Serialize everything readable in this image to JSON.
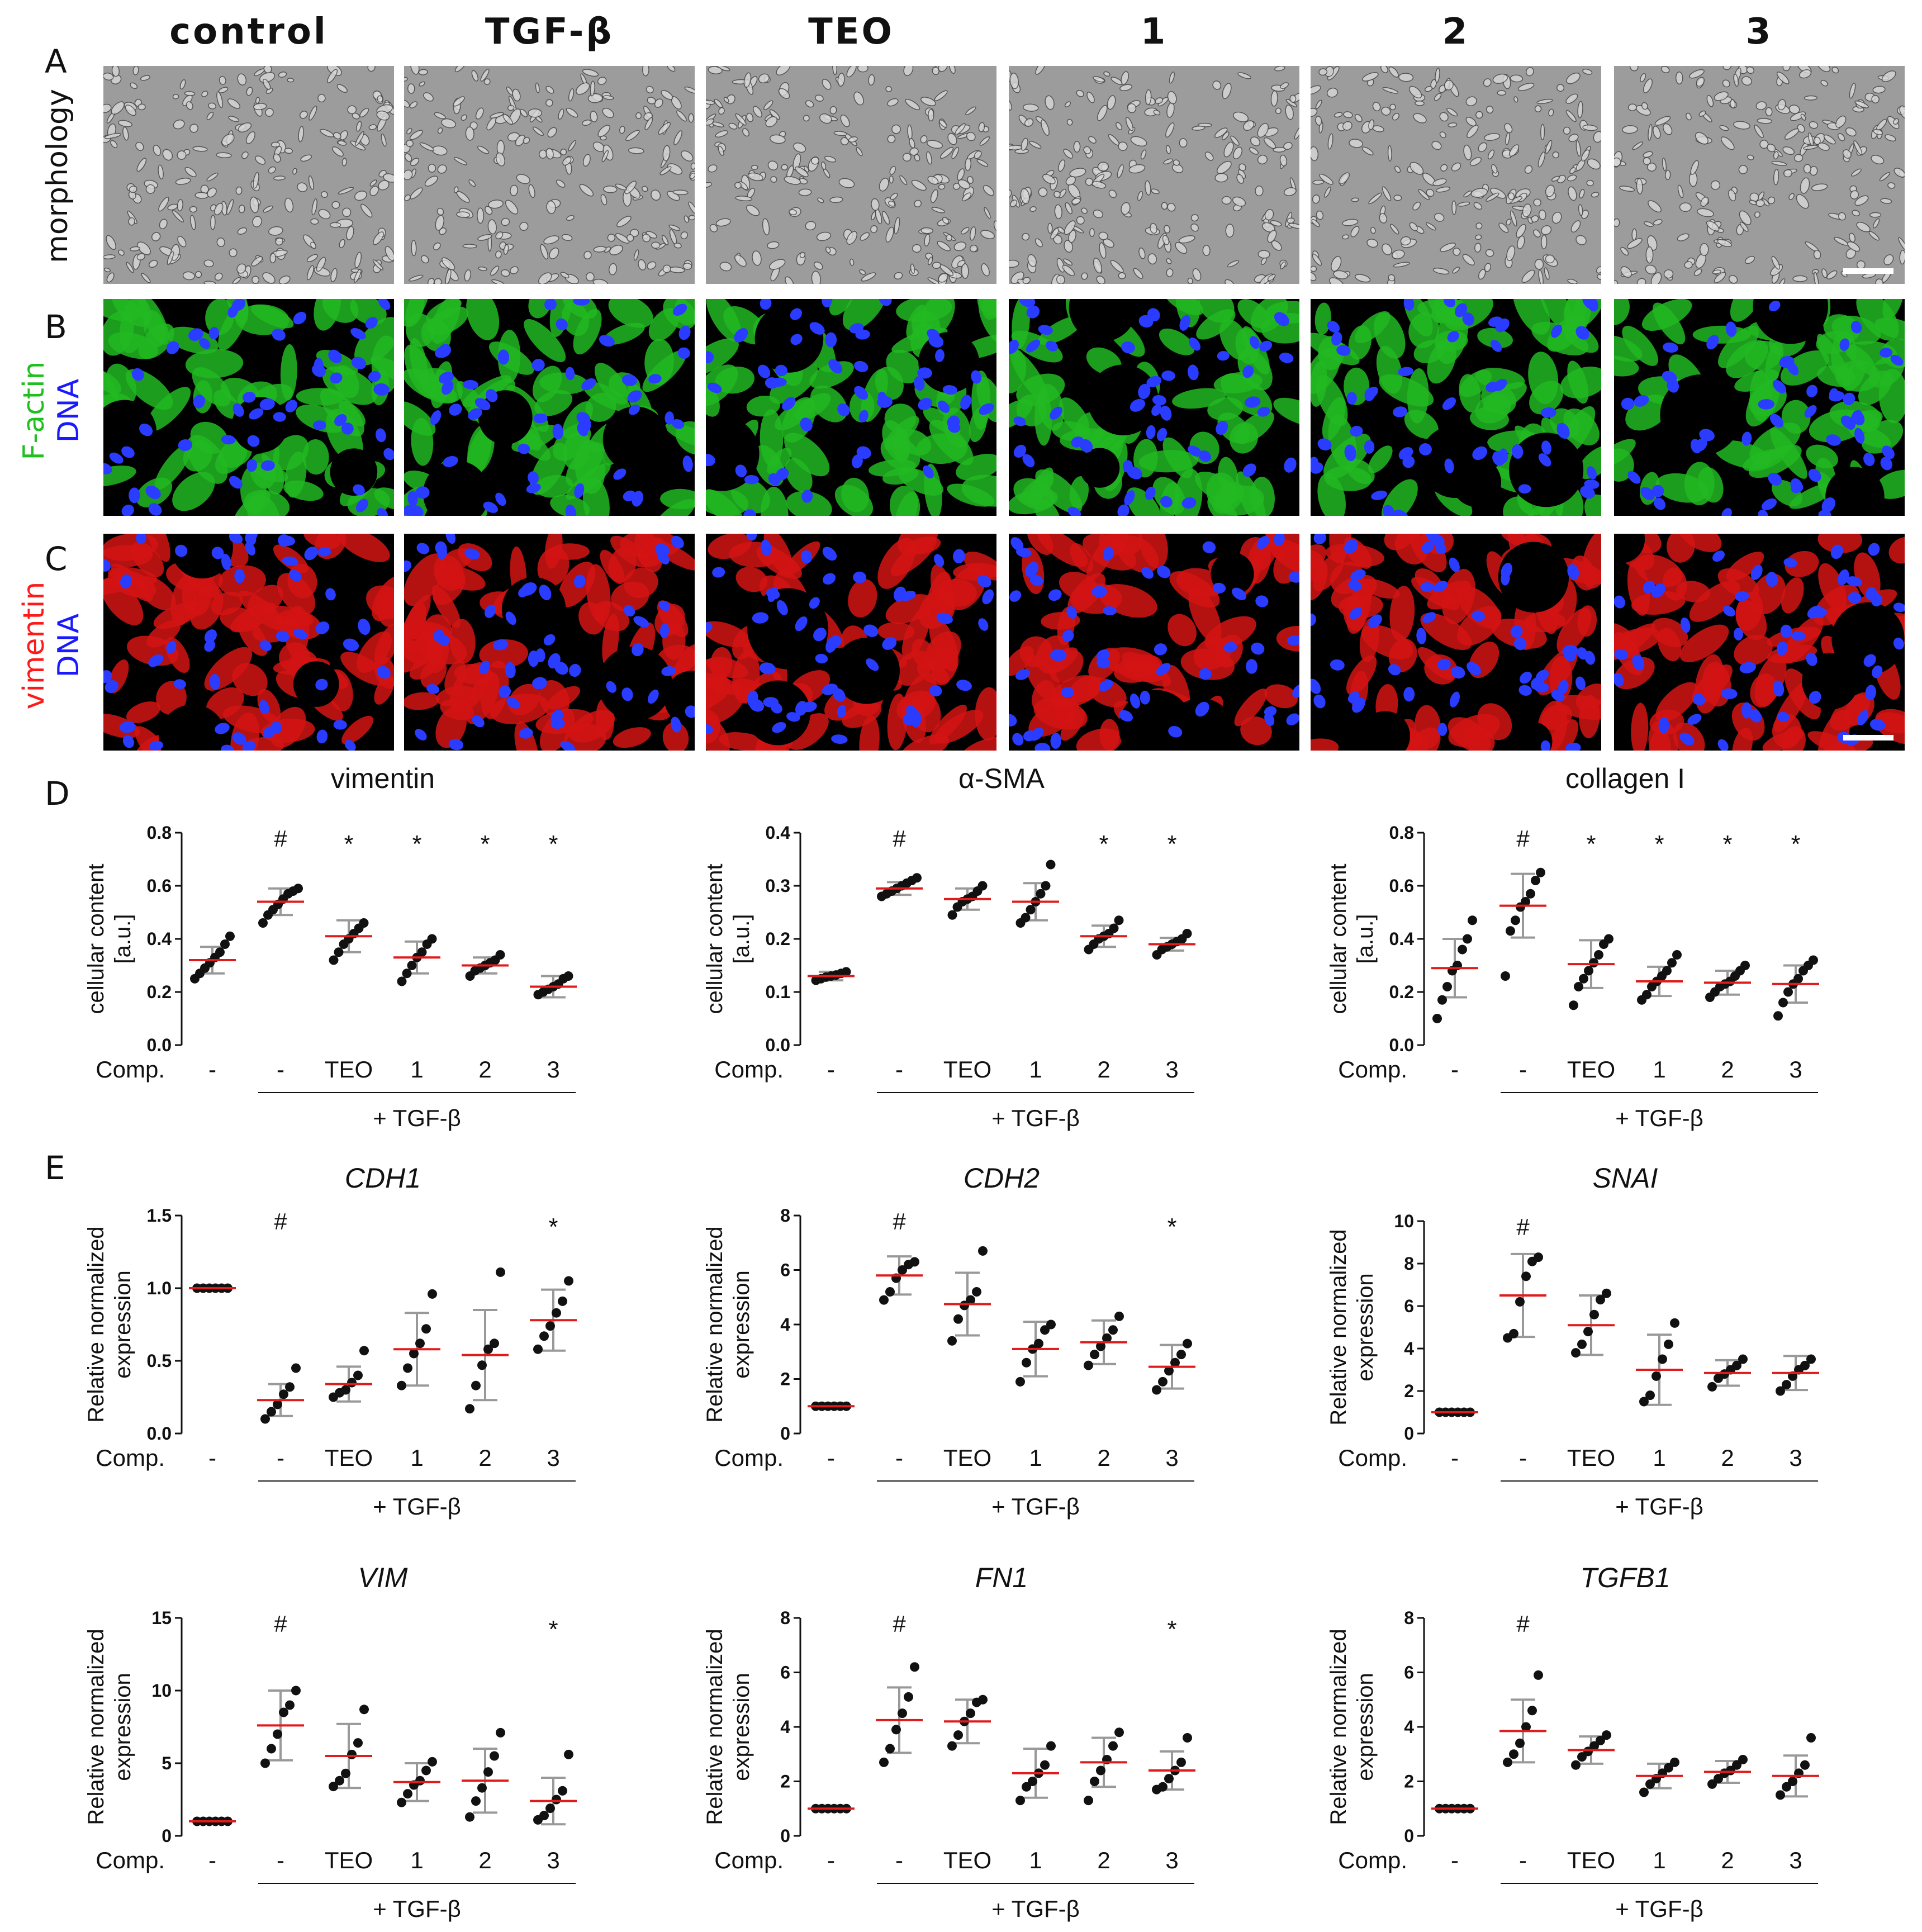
{
  "columns": [
    "control",
    "TGF-β",
    "TEO",
    "1",
    "2",
    "3"
  ],
  "panels": {
    "A": {
      "letter": "A",
      "row_label": "morphology"
    },
    "B": {
      "letter": "B",
      "row_label": [
        {
          "text": "F-actin",
          "color": "#1fbf1f"
        },
        {
          "text": "DNA",
          "color": "#1a1aff"
        }
      ]
    },
    "C": {
      "letter": "C",
      "row_label": [
        {
          "text": "vimentin",
          "color": "#ff1a1a"
        },
        {
          "text": "DNA",
          "color": "#1a1aff"
        }
      ]
    },
    "D": {
      "letter": "D"
    },
    "E": {
      "letter": "E"
    }
  },
  "image_styles": {
    "A": {
      "bg": "#9c9c9c",
      "cell": "#d8d8d8",
      "stroke": "#444444"
    },
    "B": {
      "bg": "#000000",
      "cell": "#22b822",
      "nucleus": "#2a3cff"
    },
    "C": {
      "bg": "#000000",
      "cell": "#d41414",
      "nucleus": "#2a3cff"
    }
  },
  "x_axis_common": {
    "comp_label": "Comp.",
    "categories": [
      "-",
      "-",
      "TEO",
      "1",
      "2",
      "3"
    ],
    "group_label": "+ TGF-β"
  },
  "chart_data": [
    {
      "id": "D-vimentin",
      "type": "scatter",
      "title": "vimentin",
      "title_italic": false,
      "ylabel": [
        "cellular content",
        "[a.u.]"
      ],
      "ylim": [
        0,
        0.8
      ],
      "yticks": [
        "0.0",
        "0.2",
        "0.4",
        "0.6",
        "0.8"
      ],
      "markers": [
        "",
        "#",
        "*",
        "*",
        "*",
        "*"
      ],
      "mean": [
        0.32,
        0.54,
        0.41,
        0.33,
        0.3,
        0.22
      ],
      "sd": [
        0.05,
        0.05,
        0.06,
        0.06,
        0.03,
        0.04
      ],
      "points": [
        [
          0.25,
          0.27,
          0.29,
          0.31,
          0.33,
          0.35,
          0.38,
          0.41
        ],
        [
          0.46,
          0.49,
          0.51,
          0.53,
          0.55,
          0.57,
          0.58,
          0.59
        ],
        [
          0.32,
          0.35,
          0.38,
          0.4,
          0.42,
          0.44,
          0.46
        ],
        [
          0.24,
          0.27,
          0.3,
          0.33,
          0.35,
          0.38,
          0.4
        ],
        [
          0.26,
          0.28,
          0.29,
          0.3,
          0.31,
          0.32,
          0.34
        ],
        [
          0.19,
          0.2,
          0.21,
          0.22,
          0.23,
          0.25,
          0.26
        ]
      ]
    },
    {
      "id": "D-aSMA",
      "type": "scatter",
      "title": "α-SMA",
      "title_italic": false,
      "ylabel": [
        "cellular content",
        "[a.u.]"
      ],
      "ylim": [
        0,
        0.4
      ],
      "yticks": [
        "0.0",
        "0.1",
        "0.2",
        "0.3",
        "0.4"
      ],
      "markers": [
        "",
        "#",
        "",
        "",
        "*",
        "*"
      ],
      "mean": [
        0.13,
        0.295,
        0.275,
        0.27,
        0.205,
        0.19
      ],
      "sd": [
        0.008,
        0.012,
        0.02,
        0.035,
        0.02,
        0.012
      ],
      "points": [
        [
          0.122,
          0.125,
          0.128,
          0.13,
          0.132,
          0.135,
          0.138
        ],
        [
          0.28,
          0.285,
          0.29,
          0.295,
          0.3,
          0.305,
          0.31,
          0.315
        ],
        [
          0.245,
          0.26,
          0.27,
          0.275,
          0.28,
          0.29,
          0.3
        ],
        [
          0.23,
          0.24,
          0.255,
          0.27,
          0.285,
          0.3,
          0.34
        ],
        [
          0.18,
          0.19,
          0.2,
          0.205,
          0.21,
          0.22,
          0.235
        ],
        [
          0.17,
          0.18,
          0.185,
          0.19,
          0.195,
          0.2,
          0.21
        ]
      ]
    },
    {
      "id": "D-collagenI",
      "type": "scatter",
      "title": "collagen I",
      "title_italic": false,
      "ylabel": [
        "cellular content",
        "[a.u.]"
      ],
      "ylim": [
        0,
        0.8
      ],
      "yticks": [
        "0.0",
        "0.2",
        "0.4",
        "0.6",
        "0.8"
      ],
      "markers": [
        "",
        "#",
        "*",
        "*",
        "*",
        "*"
      ],
      "mean": [
        0.29,
        0.525,
        0.305,
        0.24,
        0.235,
        0.23
      ],
      "sd": [
        0.11,
        0.12,
        0.09,
        0.055,
        0.045,
        0.07
      ],
      "points": [
        [
          0.1,
          0.17,
          0.22,
          0.28,
          0.3,
          0.36,
          0.4,
          0.47
        ],
        [
          0.26,
          0.43,
          0.47,
          0.52,
          0.54,
          0.57,
          0.62,
          0.65
        ],
        [
          0.15,
          0.22,
          0.25,
          0.28,
          0.31,
          0.34,
          0.38,
          0.4
        ],
        [
          0.17,
          0.19,
          0.22,
          0.24,
          0.26,
          0.28,
          0.31,
          0.34
        ],
        [
          0.18,
          0.2,
          0.22,
          0.23,
          0.24,
          0.26,
          0.28,
          0.3
        ],
        [
          0.11,
          0.16,
          0.2,
          0.23,
          0.25,
          0.28,
          0.3,
          0.32
        ]
      ]
    },
    {
      "id": "E-CDH1",
      "type": "scatter",
      "title": "CDH1",
      "title_italic": true,
      "ylabel": [
        "Relative normalized",
        "expression"
      ],
      "ylim": [
        0,
        1.5
      ],
      "yticks": [
        "0.0",
        "0.5",
        "1.0",
        "1.5"
      ],
      "markers": [
        "",
        "#",
        "",
        "",
        "",
        "*"
      ],
      "mean": [
        1.0,
        0.23,
        0.34,
        0.58,
        0.54,
        0.78
      ],
      "sd": [
        0.0,
        0.11,
        0.12,
        0.25,
        0.31,
        0.21
      ],
      "points": [
        [
          1.0,
          1.0,
          1.0,
          1.0,
          1.0,
          1.0
        ],
        [
          0.1,
          0.15,
          0.2,
          0.27,
          0.32,
          0.45
        ],
        [
          0.25,
          0.28,
          0.3,
          0.35,
          0.4,
          0.57
        ],
        [
          0.33,
          0.45,
          0.55,
          0.62,
          0.72,
          0.96
        ],
        [
          0.17,
          0.33,
          0.47,
          0.58,
          0.62,
          1.11
        ],
        [
          0.58,
          0.67,
          0.74,
          0.83,
          0.91,
          1.05
        ]
      ]
    },
    {
      "id": "E-CDH2",
      "type": "scatter",
      "title": "CDH2",
      "title_italic": true,
      "ylabel": [
        "Relative normalized",
        "expression"
      ],
      "ylim": [
        0,
        8
      ],
      "yticks": [
        "0",
        "2",
        "4",
        "6",
        "8"
      ],
      "markers": [
        "",
        "#",
        "",
        "",
        "",
        "*"
      ],
      "mean": [
        1.0,
        5.8,
        4.75,
        3.1,
        3.35,
        2.45
      ],
      "sd": [
        0.0,
        0.7,
        1.15,
        1.0,
        0.8,
        0.8
      ],
      "points": [
        [
          1.0,
          1.0,
          1.0,
          1.0,
          1.0,
          1.0
        ],
        [
          4.9,
          5.2,
          5.7,
          6.0,
          6.2,
          6.3
        ],
        [
          3.4,
          4.2,
          4.7,
          4.9,
          5.2,
          6.7
        ],
        [
          1.9,
          2.6,
          3.1,
          3.3,
          3.8,
          4.0
        ],
        [
          2.5,
          2.9,
          3.2,
          3.5,
          3.8,
          4.3
        ],
        [
          1.6,
          1.9,
          2.3,
          2.6,
          2.9,
          3.3
        ]
      ]
    },
    {
      "id": "E-SNAI",
      "type": "scatter",
      "title": "SNAI",
      "title_italic": true,
      "ylabel": [
        "Relative normalized",
        "expression"
      ],
      "ylim": [
        0,
        10
      ],
      "yticks": [
        "0",
        "2",
        "4",
        "6",
        "8",
        "10"
      ],
      "markers": [
        "",
        "#",
        "",
        "",
        "",
        ""
      ],
      "mean": [
        1.0,
        6.5,
        5.1,
        3.0,
        2.85,
        2.85
      ],
      "sd": [
        0.0,
        1.95,
        1.4,
        1.65,
        0.6,
        0.8
      ],
      "points": [
        [
          1.0,
          1.0,
          1.0,
          1.0,
          1.0,
          1.0
        ],
        [
          4.5,
          4.7,
          6.2,
          7.4,
          8.1,
          8.3
        ],
        [
          3.8,
          4.2,
          4.8,
          5.6,
          6.3,
          6.6
        ],
        [
          1.5,
          1.8,
          2.7,
          3.5,
          4.2,
          5.2
        ],
        [
          2.2,
          2.6,
          2.8,
          3.0,
          3.2,
          3.5
        ],
        [
          2.0,
          2.3,
          2.7,
          3.0,
          3.2,
          3.5
        ]
      ]
    },
    {
      "id": "E-VIM",
      "type": "scatter",
      "title": "VIM",
      "title_italic": true,
      "ylabel": [
        "Relative normalized",
        "expression"
      ],
      "ylim": [
        0,
        15
      ],
      "yticks": [
        "0",
        "5",
        "10",
        "15"
      ],
      "markers": [
        "",
        "#",
        "",
        "",
        "",
        "*"
      ],
      "mean": [
        1.0,
        7.6,
        5.5,
        3.7,
        3.8,
        2.4
      ],
      "sd": [
        0.0,
        2.4,
        2.2,
        1.3,
        2.2,
        1.6
      ],
      "points": [
        [
          1.0,
          1.0,
          1.0,
          1.0,
          1.0,
          1.0
        ],
        [
          5.0,
          6.0,
          7.0,
          8.5,
          9.0,
          10.0
        ],
        [
          3.4,
          3.8,
          4.3,
          5.6,
          6.4,
          8.7
        ],
        [
          2.3,
          2.9,
          3.5,
          3.8,
          4.5,
          5.1
        ],
        [
          1.3,
          2.4,
          3.3,
          4.4,
          5.5,
          7.1
        ],
        [
          1.1,
          1.4,
          1.9,
          2.5,
          3.1,
          5.6
        ]
      ]
    },
    {
      "id": "E-FN1",
      "type": "scatter",
      "title": "FN1",
      "title_italic": true,
      "ylabel": [
        "Relative normalized",
        "expression"
      ],
      "ylim": [
        0,
        8
      ],
      "yticks": [
        "0",
        "2",
        "4",
        "6",
        "8"
      ],
      "markers": [
        "",
        "#",
        "",
        "",
        "",
        "*"
      ],
      "mean": [
        1.0,
        4.25,
        4.2,
        2.3,
        2.7,
        2.4
      ],
      "sd": [
        0.0,
        1.2,
        0.8,
        0.9,
        0.9,
        0.7
      ],
      "points": [
        [
          1.0,
          1.0,
          1.0,
          1.0,
          1.0,
          1.0
        ],
        [
          2.7,
          3.2,
          3.9,
          4.5,
          5.1,
          6.2
        ],
        [
          3.3,
          3.7,
          4.2,
          4.5,
          4.9,
          5.0
        ],
        [
          1.3,
          1.8,
          2.0,
          2.3,
          2.6,
          3.3
        ],
        [
          1.3,
          2.0,
          2.4,
          2.8,
          3.3,
          3.8
        ],
        [
          1.7,
          1.8,
          2.1,
          2.4,
          2.7,
          3.6
        ]
      ]
    },
    {
      "id": "E-TGFB1",
      "type": "scatter",
      "title": "TGFB1",
      "title_italic": true,
      "ylabel": [
        "Relative normalized",
        "expression"
      ],
      "ylim": [
        0,
        8
      ],
      "yticks": [
        "0",
        "2",
        "4",
        "6",
        "8"
      ],
      "markers": [
        "",
        "#",
        "",
        "",
        "",
        ""
      ],
      "mean": [
        1.0,
        3.85,
        3.15,
        2.2,
        2.35,
        2.2
      ],
      "sd": [
        0.0,
        1.15,
        0.5,
        0.45,
        0.4,
        0.75
      ],
      "points": [
        [
          1.0,
          1.0,
          1.0,
          1.0,
          1.0,
          1.0
        ],
        [
          2.7,
          3.0,
          3.4,
          4.0,
          4.6,
          5.9
        ],
        [
          2.6,
          2.9,
          3.1,
          3.3,
          3.5,
          3.7
        ],
        [
          1.6,
          1.9,
          2.1,
          2.3,
          2.5,
          2.7
        ],
        [
          1.9,
          2.1,
          2.3,
          2.4,
          2.6,
          2.8
        ],
        [
          1.5,
          1.8,
          2.0,
          2.3,
          2.6,
          3.6
        ]
      ]
    }
  ],
  "colors": {
    "mean_line": "#e01b1b",
    "error_bar": "#999999",
    "point": "#111111",
    "axis": "#111111"
  }
}
